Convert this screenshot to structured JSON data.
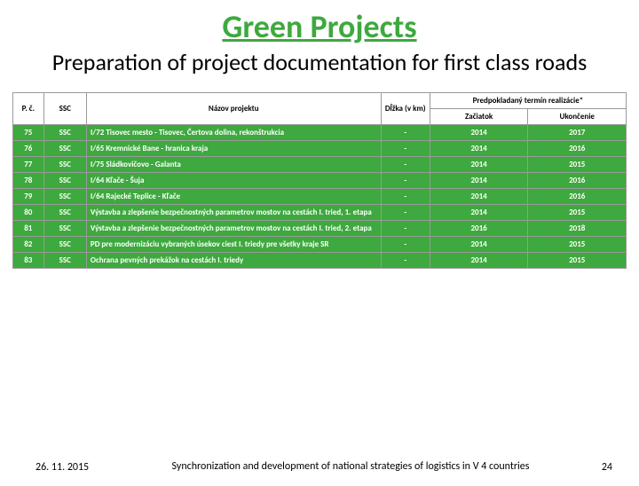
{
  "header": {
    "title": "Green Projects",
    "subtitle": "Preparation of project documentation for first class roads"
  },
  "table": {
    "columns": {
      "pc": "P. č.",
      "ssc": "SSC",
      "nazov": "Názov projektu",
      "dlzka": "Dĺžka (v km)",
      "termin": "Predpokladaný termín realizácie*",
      "zaciatok": "Začiatok",
      "ukoncenie": "Ukončenie"
    },
    "rows": [
      {
        "pc": "75",
        "ssc": "SSC",
        "nazov": "I/72 Tisovec mesto - Tisovec, Čertova dolina, rekonštrukcia",
        "dlzka": "-",
        "zac": "2014",
        "uk": "2017"
      },
      {
        "pc": "76",
        "ssc": "SSC",
        "nazov": "I/65 Kremnické Bane - hranica kraja",
        "dlzka": "-",
        "zac": "2014",
        "uk": "2016"
      },
      {
        "pc": "77",
        "ssc": "SSC",
        "nazov": "I/75 Sládkovičovo - Galanta",
        "dlzka": "-",
        "zac": "2014",
        "uk": "2015"
      },
      {
        "pc": "78",
        "ssc": "SSC",
        "nazov": "I/64 Kľače - Šuja",
        "dlzka": "-",
        "zac": "2014",
        "uk": "2016"
      },
      {
        "pc": "79",
        "ssc": "SSC",
        "nazov": "I/64 Rajecké Teplice - Kľače",
        "dlzka": "-",
        "zac": "2014",
        "uk": "2016"
      },
      {
        "pc": "80",
        "ssc": "SSC",
        "nazov": "Výstavba a zlepšenie bezpečnostných parametrov mostov na cestách I. tried, 1. etapa",
        "dlzka": "-",
        "zac": "2014",
        "uk": "2015"
      },
      {
        "pc": "81",
        "ssc": "SSC",
        "nazov": "Výstavba a zlepšenie bezpečnostných parametrov mostov na cestách I. tried, 2. etapa",
        "dlzka": "-",
        "zac": "2016",
        "uk": "2018"
      },
      {
        "pc": "82",
        "ssc": "SSC",
        "nazov": "PD pre modernizáciu vybraných úsekov ciest I. triedy pre všetky kraje SR",
        "dlzka": "-",
        "zac": "2014",
        "uk": "2015"
      },
      {
        "pc": "83",
        "ssc": "SSC",
        "nazov": "Ochrana pevných prekážok na cestách I. triedy",
        "dlzka": "-",
        "zac": "2014",
        "uk": "2015"
      }
    ]
  },
  "footer": {
    "date": "26. 11. 2015",
    "center": "Synchronization and development of national strategies of logistics in V 4 countries",
    "page": "24"
  },
  "style": {
    "accent_green": "#3ea93e",
    "row_bg": "#3ea93e",
    "border_color": "#999999",
    "text_color": "#000000",
    "row_text_color": "#ffffff",
    "title_fontsize": 36,
    "subtitle_fontsize": 26,
    "table_fontsize": 9,
    "footer_fontsize": 12
  }
}
